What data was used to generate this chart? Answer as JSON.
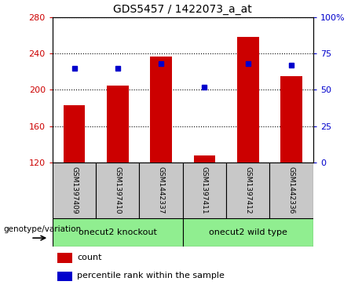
{
  "title": "GDS5457 / 1422073_a_at",
  "samples": [
    "GSM1397409",
    "GSM1397410",
    "GSM1442337",
    "GSM1397411",
    "GSM1397412",
    "GSM1442336"
  ],
  "counts": [
    183,
    205,
    237,
    128,
    258,
    215
  ],
  "percentiles": [
    65,
    65,
    68,
    52,
    68,
    67
  ],
  "group_label": "genotype/variation",
  "groups": [
    {
      "label": "onecut2 knockout",
      "start": 0,
      "end": 3,
      "color": "#90ee90"
    },
    {
      "label": "onecut2 wild type",
      "start": 3,
      "end": 6,
      "color": "#90ee90"
    }
  ],
  "ylim_left": [
    120,
    280
  ],
  "ylim_right": [
    0,
    100
  ],
  "yticks_left": [
    120,
    160,
    200,
    240,
    280
  ],
  "yticks_right": [
    0,
    25,
    50,
    75,
    100
  ],
  "bar_color": "#cc0000",
  "dot_color": "#0000cc",
  "bar_width": 0.5,
  "sample_box_color": "#c8c8c8",
  "legend_items": [
    "count",
    "percentile rank within the sample"
  ],
  "legend_colors": [
    "#cc0000",
    "#0000cc"
  ]
}
